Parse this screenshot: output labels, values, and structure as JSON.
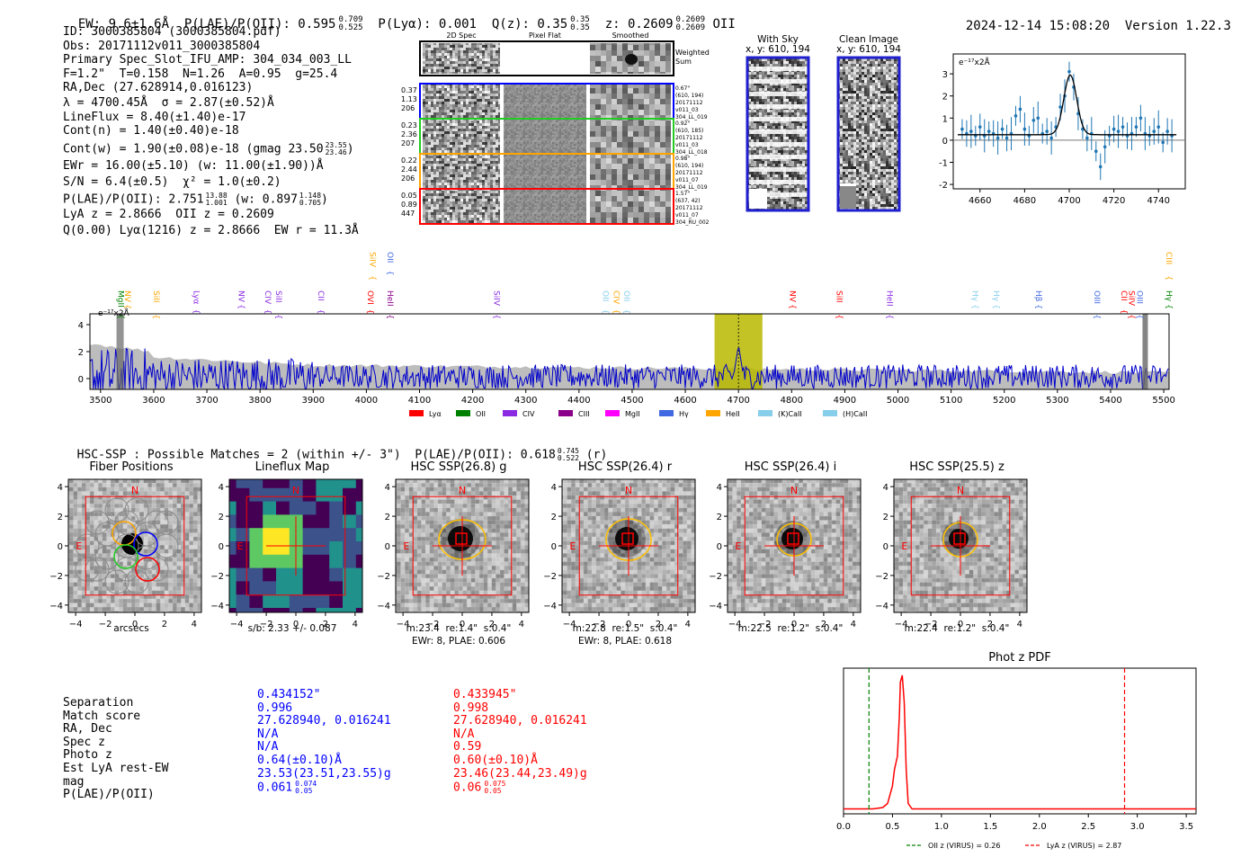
{
  "header": {
    "ew": "EW: 9.6±1.6Å",
    "plae": "P(LAE)/P(OII): 0.595",
    "plae_up": "0.709",
    "plae_lo": "0.525",
    "plya": "P(Lyα): 0.001",
    "qz": "Q(z): 0.35",
    "qz_up": "0.35",
    "qz_lo": "0.35",
    "z": "z: 0.2609",
    "z_up": "0.2609",
    "z_lo": "0.2609",
    "line": "OII",
    "timestamp": "2024-12-14 15:08:20",
    "version": "Version 1.22.3"
  },
  "info": {
    "id": "ID: 3000385804 (3000385804.pdf)",
    "obs": "Obs: 20171112v011_3000385804",
    "primary": "Primary Spec_Slot_IFU_AMP: 304_034_003_LL",
    "fratio": "F=1.2\"  T=0.158  N=1.26  A=0.95  g=25.4",
    "radec": "RA,Dec (27.628914,0.016123)",
    "lambda": "λ = 4700.45Å  σ = 2.87(±0.52)Å",
    "lineflux": "LineFlux = 8.40(±1.40)e-17",
    "contn": "Cont(n) = 1.40(±0.40)e-18",
    "contw": "Cont(w) = 1.90(±0.08)e-18 (gmag 23.50",
    "contw_up": "23.55",
    "contw_lo": "23.46",
    "ewr": "EWr = 16.00(±5.10) (w: 11.00(±1.90))Å",
    "sn": "S/N = 6.4(±0.5)  χ² = 1.0(±0.2)",
    "plae": "P(LAE)/P(OII): 2.751",
    "plae_up": "13.88",
    "plae_lo": "1.001",
    "plae_w": "(w: 0.897",
    "plae_w_up": "1.148",
    "plae_w_lo": "0.705",
    "lyaz": "LyA z = 2.8666  OII z = 0.2609",
    "qline": "Q(0.00) Lyα(1216) z = 2.8666  EW r = 11.3Å"
  },
  "cutouts": {
    "col_titles": [
      "2D Spec",
      "Pixel Flat",
      "Smoothed"
    ],
    "weighted_label": "Weighted Sum",
    "rows": [
      {
        "left": [
          "0.37",
          "1.13",
          "206"
        ],
        "right": [
          "0.67\"",
          "(610, 194)",
          "20171112",
          "v011_03",
          "304_LL_019"
        ],
        "color": "#0000ff"
      },
      {
        "left": [
          "0.23",
          "2.36",
          "207"
        ],
        "right": [
          "0.92\"",
          "(610, 185)",
          "20171112",
          "v011_03",
          "304_LL_018"
        ],
        "color": "#22cc22"
      },
      {
        "left": [
          "0.22",
          "2.44",
          "206"
        ],
        "right": [
          "0.98\"",
          "(610, 194)",
          "20171112",
          "v011_07",
          "304_LL_019"
        ],
        "color": "#ffa500"
      },
      {
        "left": [
          "0.05",
          "0.89",
          "447"
        ],
        "right": [
          "1.57\"",
          "(637, 42)",
          "20171112",
          "v011_07",
          "304_RU_002"
        ],
        "color": "#ff0000"
      }
    ],
    "with_sky_title": "With Sky",
    "with_sky_coord": "x, y: 610, 194",
    "clean_title": "Clean Image",
    "clean_coord": "x, y: 610, 194"
  },
  "line_fit": {
    "ylabel": "e⁻¹⁷x2Å",
    "x_ticks": [
      "4660",
      "4680",
      "4700",
      "4720",
      "4740"
    ],
    "y_ticks": [
      "3",
      "2",
      "1",
      "0",
      "-1",
      "-2"
    ]
  },
  "chart_data": [
    {
      "type": "line",
      "title": "Line fit",
      "ylabel": "e⁻¹⁷x2Å",
      "xlim": [
        4648,
        4752
      ],
      "ylim": [
        -2.2,
        3.9
      ],
      "series": [
        {
          "name": "data",
          "x": [
            4652,
            4654,
            4656,
            4658,
            4660,
            4662,
            4664,
            4666,
            4668,
            4670,
            4672,
            4674,
            4676,
            4678,
            4680,
            4682,
            4684,
            4686,
            4688,
            4690,
            4692,
            4694,
            4696,
            4698,
            4700,
            4702,
            4704,
            4706,
            4708,
            4710,
            4712,
            4714,
            4716,
            4718,
            4720,
            4722,
            4724,
            4726,
            4728,
            4730,
            4732,
            4734,
            4736,
            4738,
            4740,
            4742,
            4744,
            4746
          ],
          "y": [
            0.5,
            0.3,
            0.4,
            0.2,
            0.6,
            0.2,
            0.4,
            0.3,
            0.1,
            0.5,
            0.1,
            0.3,
            1.1,
            1.4,
            0.5,
            0.2,
            0.9,
            1.0,
            0.3,
            0.4,
            0.1,
            0.6,
            1.5,
            2.0,
            3.1,
            2.4,
            1.2,
            0.5,
            0.1,
            0.3,
            -0.5,
            -1.2,
            -0.3,
            0.2,
            0.5,
            0.4,
            0.6,
            0.2,
            0.3,
            0.6,
            1.0,
            0.3,
            0.2,
            0.4,
            0.6,
            -0.1,
            0.4,
            0.2
          ]
        },
        {
          "name": "fit",
          "type": "gaussian",
          "center": 4700.45,
          "sigma": 2.87,
          "amp": 2.7,
          "baseline": 0.25
        }
      ]
    },
    {
      "type": "line",
      "title": "Full spectrum",
      "ylabel": "e⁻¹⁷x2Å",
      "xlim": [
        3480,
        5510
      ],
      "ylim": [
        -0.8,
        4.8
      ],
      "x_ticks": [
        3500,
        3600,
        3700,
        3800,
        3900,
        4000,
        4100,
        4200,
        4300,
        4400,
        4500,
        4600,
        4700,
        4800,
        4900,
        5000,
        5100,
        5200,
        5300,
        5400,
        5500
      ],
      "y_ticks": [
        0,
        2,
        4
      ],
      "highlight": [
        4655,
        4745
      ],
      "line_markers": [
        {
          "label": "MgII",
          "x": 3533,
          "color": "#008000"
        },
        {
          "label": "NV",
          "x": 3546,
          "color": "#ffa500"
        },
        {
          "label": "SiII",
          "x": 3600,
          "color": "#ffa500"
        },
        {
          "label": "Lyα",
          "x": 3675,
          "color": "#8a2be2"
        },
        {
          "label": "NV",
          "x": 3760,
          "color": "#8a2be2"
        },
        {
          "label": "CIV",
          "x": 3810,
          "color": "#8a2be2"
        },
        {
          "label": "SiII",
          "x": 3830,
          "color": "#8a2be2"
        },
        {
          "label": "CII",
          "x": 3910,
          "color": "#8a2be2"
        },
        {
          "label": "OVI",
          "x": 4003,
          "color": "#ff0000"
        },
        {
          "label": "HeII",
          "x": 4040,
          "color": "#8b008b"
        },
        {
          "label": "SiIV",
          "x": 4007,
          "color": "#ffa500",
          "high": true
        },
        {
          "label": "OII",
          "x": 4040,
          "color": "#4169e1",
          "high": true
        },
        {
          "label": "SiIV",
          "x": 4240,
          "color": "#8a2be2"
        },
        {
          "label": "OII",
          "x": 4445,
          "color": "#87ceeb"
        },
        {
          "label": "CIV",
          "x": 4465,
          "color": "#ffa500"
        },
        {
          "label": "OII",
          "x": 4485,
          "color": "#87ceeb"
        },
        {
          "label": "NV",
          "x": 4797,
          "color": "#ff0000"
        },
        {
          "label": "SiII",
          "x": 4885,
          "color": "#ff0000"
        },
        {
          "label": "HeII",
          "x": 4980,
          "color": "#8a2be2"
        },
        {
          "label": "Hγ",
          "x": 5140,
          "color": "#87ceeb"
        },
        {
          "label": "Hγ",
          "x": 5180,
          "color": "#87ceeb"
        },
        {
          "label": "Hβ",
          "x": 5260,
          "color": "#4169e1"
        },
        {
          "label": "OIII",
          "x": 5370,
          "color": "#4169e1"
        },
        {
          "label": "CII",
          "x": 5420,
          "color": "#ff0000"
        },
        {
          "label": "SiIV",
          "x": 5435,
          "color": "#ff0000"
        },
        {
          "label": "OIII",
          "x": 5450,
          "color": "#4169e1"
        },
        {
          "label": "Hγ",
          "x": 5505,
          "color": "#008000"
        },
        {
          "label": "CIII",
          "x": 5505,
          "color": "#ffa500",
          "high": true
        }
      ],
      "legend": [
        {
          "label": "Lyα",
          "color": "#ff0000"
        },
        {
          "label": "OII",
          "color": "#008000"
        },
        {
          "label": "CIV",
          "color": "#8a2be2"
        },
        {
          "label": "CIII",
          "color": "#8b008b"
        },
        {
          "label": "MgII",
          "color": "#ff00ff"
        },
        {
          "label": "Hγ",
          "color": "#4169e1"
        },
        {
          "label": "HeII",
          "color": "#ffa500"
        },
        {
          "label": "(K)CaII",
          "color": "#87ceeb"
        },
        {
          "label": "(H)CaII",
          "color": "#87ceeb"
        }
      ]
    },
    {
      "type": "line",
      "title": "Phot z PDF",
      "xlim": [
        0,
        3.6
      ],
      "x_ticks": [
        "0.0",
        "0.5",
        "1.0",
        "1.5",
        "2.0",
        "2.5",
        "3.0",
        "3.5"
      ],
      "series": [
        {
          "name": "pdf",
          "x": [
            0.0,
            0.3,
            0.4,
            0.45,
            0.5,
            0.52,
            0.55,
            0.57,
            0.58,
            0.6,
            0.62,
            0.64,
            0.66,
            0.7,
            0.8,
            1.0,
            2.0,
            3.6
          ],
          "y": [
            0.01,
            0.01,
            0.02,
            0.05,
            0.18,
            0.3,
            0.4,
            0.7,
            0.95,
            1.0,
            0.8,
            0.3,
            0.05,
            0.01,
            0.01,
            0.01,
            0.01,
            0.01
          ]
        }
      ],
      "vlines": [
        {
          "label": "OII z (VIRUS) = 0.26",
          "x": 0.26,
          "color": "#008000"
        },
        {
          "label": "LyA z (VIRUS) = 2.87",
          "x": 2.87,
          "color": "#ff0000"
        }
      ]
    }
  ],
  "hsc": {
    "summary": "HSC-SSP : Possible Matches = 2 (within +/- 3\")  P(LAE)/P(OII): 0.618",
    "summary_up": "0.745",
    "summary_lo": "0.522",
    "summary_band": "(r)"
  },
  "panels": [
    {
      "title": "Fiber Positions",
      "cap1": "arcsecs",
      "cap2": ""
    },
    {
      "title": "Lineflux Map",
      "cap1": "s/b: 2.33 +/- 0.087",
      "cap2": ""
    },
    {
      "title": "HSC SSP(26.8) g",
      "cap1": "m:23.4  re:1.4\"  s:0.4\"",
      "cap2": "EWr: 8, PLAE: 0.606"
    },
    {
      "title": "HSC SSP(26.4) r",
      "cap1": "m:22.8  re:1.5\"  s:0.4\"",
      "cap2": "EWr: 8, PLAE: 0.618"
    },
    {
      "title": "HSC SSP(26.4) i",
      "cap1": "m:22.5  re:1.2\"  s:0.4\"",
      "cap2": ""
    },
    {
      "title": "HSC SSP(25.5) z",
      "cap1": "m:22.4  re:1.2\"  s:0.4\"",
      "cap2": ""
    }
  ],
  "panel_ticks": {
    "x": [
      "−4",
      "−2",
      "0",
      "2",
      "4"
    ],
    "y": [
      "4",
      "2",
      "0",
      "−2",
      "−4"
    ],
    "north": "N",
    "east": "E"
  },
  "match_table": {
    "labels": [
      "Separation",
      "Match score",
      "RA, Dec",
      "Spec z",
      "Photo z",
      "Est LyA rest-EW",
      "mag",
      "P(LAE)/P(OII)"
    ],
    "col1": [
      "0.434152\"",
      "0.996",
      "27.628940, 0.016241",
      "N/A",
      "N/A",
      "0.64(±0.10)Å",
      "23.53(23.51,23.55)g",
      "0.061"
    ],
    "col1_up": "0.074",
    "col1_lo": "0.05",
    "col2": [
      "0.433945\"",
      "0.998",
      "27.628940, 0.016241",
      "N/A",
      "0.59",
      "0.60(±0.10)Å",
      "23.46(23.44,23.49)g",
      "0.06"
    ],
    "col2_up": "0.075",
    "col2_lo": "0.05"
  },
  "photz": {
    "title": "Phot z PDF",
    "legend_oii": "OII z (VIRUS) = 0.26",
    "legend_lya": "LyA z (VIRUS) = 2.87"
  }
}
